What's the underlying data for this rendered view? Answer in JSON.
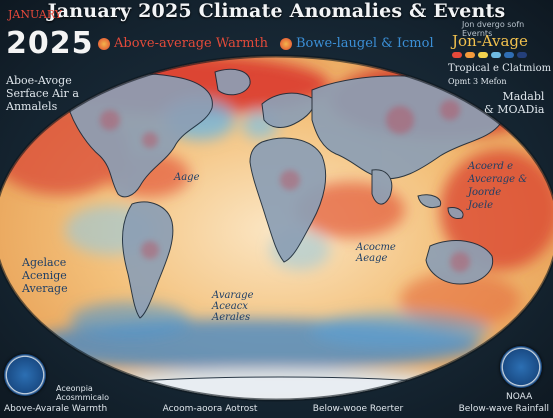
{
  "title": "January 2025 Climate Anomalies & Events",
  "month": "JANUARY",
  "year": "2025",
  "legend": {
    "warm": {
      "label": "Above-average Warmth",
      "color": "#e24a3a"
    },
    "cool": {
      "label": "Bowe-laugel & Icmol",
      "color": "#3b8fd6"
    }
  },
  "top_right": {
    "small_text": "Jon dvergo sofn Evernts",
    "heading": "Jon-Avage",
    "swatch_colors": [
      "#e6493a",
      "#f39a3c",
      "#f2d24e",
      "#6fbbe3",
      "#2f6db3",
      "#243f7a"
    ]
  },
  "left_panel": {
    "top": [
      "Aboe-Avoge",
      "Serface Air a",
      "Anmalels"
    ],
    "middle": [
      "Agelace",
      "Acenige",
      "Average"
    ]
  },
  "right_panel": {
    "top": [
      "Tropical e Clatmiom",
      "Opmt 3 Mefon"
    ],
    "mid": [
      "Madabl",
      "& MOADia"
    ],
    "lower": [
      "Acoerd e",
      "Avcerage &",
      "Joorde",
      "Joele"
    ]
  },
  "map_labels": {
    "africa": [
      "Acocme",
      "Aeage"
    ],
    "southern": [
      "Avarage",
      "Aceacx",
      "Aerales"
    ],
    "america": [
      "Aage"
    ]
  },
  "footer": {
    "items": [
      "Above-Avarale Warmth",
      "Acoom-aoora Aotrost",
      "Below-wooe Roerter",
      "Below-wave Rainfall"
    ]
  },
  "emblems": {
    "left_text": [
      "Aceonpia",
      "Acosmmicalo"
    ],
    "right_text": [
      "NOAA"
    ]
  }
}
